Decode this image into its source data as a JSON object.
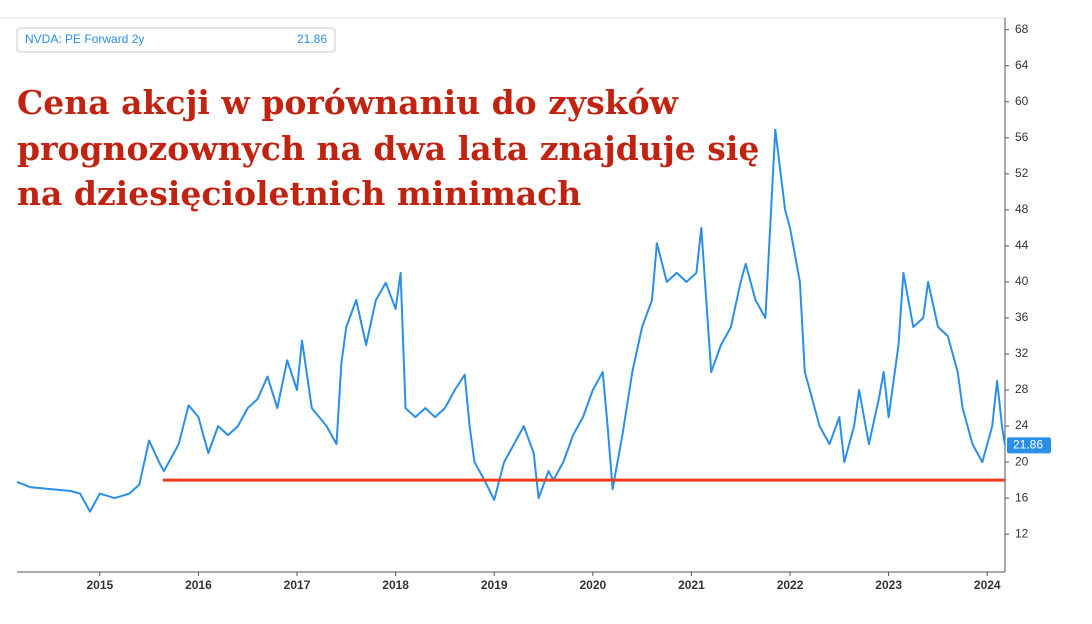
{
  "chart_data": {
    "type": "line",
    "annotation": [
      "Cena akcji w porównaniu do zysków",
      "prognozownych na dwa lata znajduje się",
      "na dziesięcioletnich minimach"
    ],
    "x": [
      2014.16,
      2014.3,
      2014.5,
      2014.7,
      2014.8,
      2014.9,
      2015.0,
      2015.15,
      2015.3,
      2015.4,
      2015.5,
      2015.6,
      2015.65,
      2015.8,
      2015.9,
      2016.0,
      2016.1,
      2016.2,
      2016.3,
      2016.4,
      2016.5,
      2016.6,
      2016.7,
      2016.8,
      2016.9,
      2017.0,
      2017.05,
      2017.15,
      2017.3,
      2017.4,
      2017.45,
      2017.5,
      2017.6,
      2017.7,
      2017.8,
      2017.9,
      2018.0,
      2018.05,
      2018.1,
      2018.2,
      2018.3,
      2018.4,
      2018.5,
      2018.6,
      2018.7,
      2018.75,
      2018.8,
      2018.9,
      2019.0,
      2019.1,
      2019.2,
      2019.3,
      2019.4,
      2019.45,
      2019.55,
      2019.6,
      2019.7,
      2019.8,
      2019.9,
      2020.0,
      2020.1,
      2020.15,
      2020.2,
      2020.3,
      2020.4,
      2020.5,
      2020.6,
      2020.65,
      2020.75,
      2020.85,
      2020.95,
      2021.05,
      2021.1,
      2021.2,
      2021.3,
      2021.4,
      2021.5,
      2021.55,
      2021.65,
      2021.75,
      2021.85,
      2021.95,
      2022.0,
      2022.1,
      2022.15,
      2022.2,
      2022.3,
      2022.4,
      2022.5,
      2022.55,
      2022.65,
      2022.7,
      2022.8,
      2022.9,
      2022.95,
      2023.0,
      2023.1,
      2023.15,
      2023.25,
      2023.35,
      2023.4,
      2023.5,
      2023.6,
      2023.7,
      2023.75,
      2023.85,
      2023.95,
      2024.0,
      2024.05,
      2024.1,
      2024.15,
      2024.18
    ],
    "series": [
      {
        "name": "NVDA: PE Forward 2y",
        "color": "#2b8fe8",
        "values": [
          17.8,
          17.2,
          17,
          16.8,
          16.5,
          14.5,
          16.5,
          16,
          16.5,
          17.5,
          22.4,
          20,
          19,
          22,
          26.3,
          25,
          21,
          24,
          23,
          24,
          26,
          27,
          29.5,
          26,
          31.3,
          28,
          33.5,
          26,
          24,
          22,
          31,
          35,
          38,
          33,
          38,
          39.9,
          37,
          41,
          26,
          25,
          26,
          25,
          26,
          28,
          29.7,
          24,
          20,
          18,
          15.8,
          20,
          22,
          24,
          21,
          16,
          19,
          18,
          20,
          23,
          25,
          28,
          30,
          24,
          17,
          23,
          30,
          35,
          38,
          44.3,
          40,
          41,
          40,
          41,
          46,
          30,
          33,
          35,
          40,
          42,
          38,
          36,
          56.9,
          48,
          46,
          40,
          30,
          28,
          24,
          22,
          25,
          20,
          24,
          28,
          22,
          27,
          30,
          25,
          33,
          41,
          35,
          36,
          40,
          35,
          34,
          30,
          26,
          22,
          20,
          22,
          24,
          29,
          24,
          21.86
        ]
      }
    ],
    "hline": {
      "value": 18,
      "from": 2015.64,
      "color": "#f03c1e"
    },
    "xlim": [
      2014.16,
      2024.18
    ],
    "xticks": [
      2015,
      2016,
      2017,
      2018,
      2019,
      2020,
      2021,
      2022,
      2023,
      2024
    ],
    "ylim": [
      7.8,
      69.3
    ],
    "yticks": [
      12,
      16,
      20,
      24,
      28,
      32,
      36,
      40,
      44,
      48,
      52,
      56,
      60,
      64,
      68
    ]
  }
}
